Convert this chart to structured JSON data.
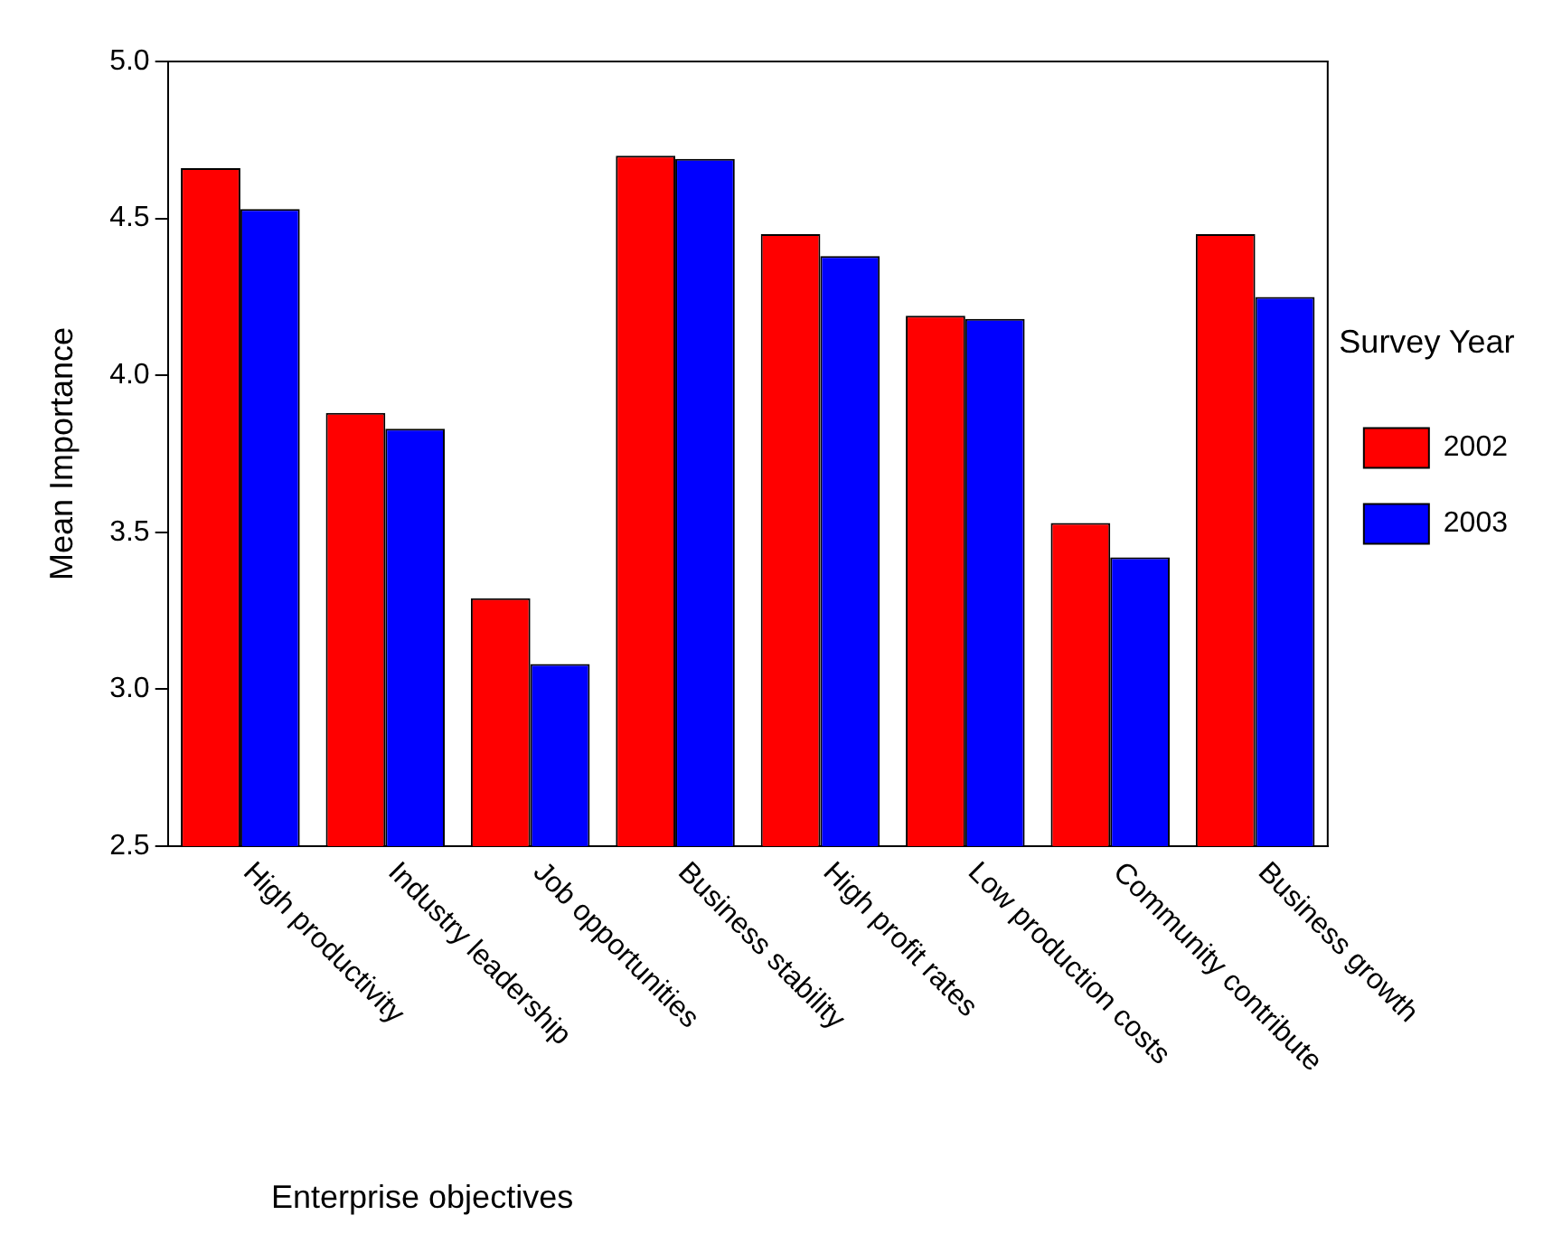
{
  "chart_data": {
    "type": "bar",
    "xlabel": "Enterprise objectives",
    "ylabel": "Mean Importance",
    "legend_title": "Survey Year",
    "categories": [
      "High productivity",
      "Industry leadership",
      "Job opportunities",
      "Business stability",
      "High profit rates",
      "Low production costs",
      "Community contribute",
      "Business growth"
    ],
    "series": [
      {
        "name": "2002",
        "color": "#ff0000",
        "values": [
          4.66,
          3.88,
          3.29,
          4.7,
          4.45,
          4.19,
          3.53,
          4.45
        ]
      },
      {
        "name": "2003",
        "color": "#0000ff",
        "values": [
          4.53,
          3.83,
          3.08,
          4.69,
          4.38,
          4.18,
          3.42,
          4.25
        ]
      }
    ],
    "ylim": [
      2.5,
      5.0
    ],
    "yticks": [
      {
        "value": 2.5,
        "label": "2.5"
      },
      {
        "value": 3,
        "label": "3.0"
      },
      {
        "value": 3.5,
        "label": "3.5"
      },
      {
        "value": 4,
        "label": "4.0"
      },
      {
        "value": 4.5,
        "label": "4.5"
      },
      {
        "value": 5,
        "label": "5.0"
      }
    ],
    "grid": false,
    "legend": "right"
  }
}
